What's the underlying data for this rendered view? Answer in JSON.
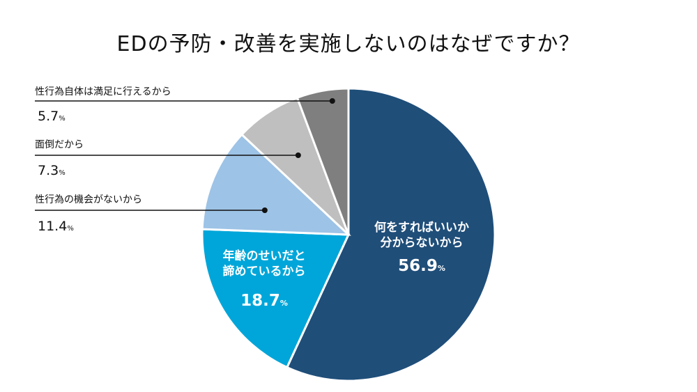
{
  "chart_data": {
    "type": "pie",
    "title": "EDの予防・改善を実施しないのはなぜですか？",
    "unit": "%",
    "slices": [
      {
        "label_lines": [
          "何をすればいいか",
          "分からないから"
        ],
        "value": "56.9",
        "color": "#1f4e79"
      },
      {
        "label_lines": [
          "年齢のせいだと",
          "諦めているから"
        ],
        "value": "18.7",
        "color": "#00a6d9"
      },
      {
        "label_lines": [
          "性行為の機会がないから"
        ],
        "value": "11.4",
        "color": "#9dc3e6"
      },
      {
        "label_lines": [
          "面倒だから"
        ],
        "value": "7.3",
        "color": "#bfbfbf"
      },
      {
        "label_lines": [
          "性行為自体は満足に行えるから"
        ],
        "value": "5.7",
        "color": "#7f7f7f"
      }
    ]
  }
}
